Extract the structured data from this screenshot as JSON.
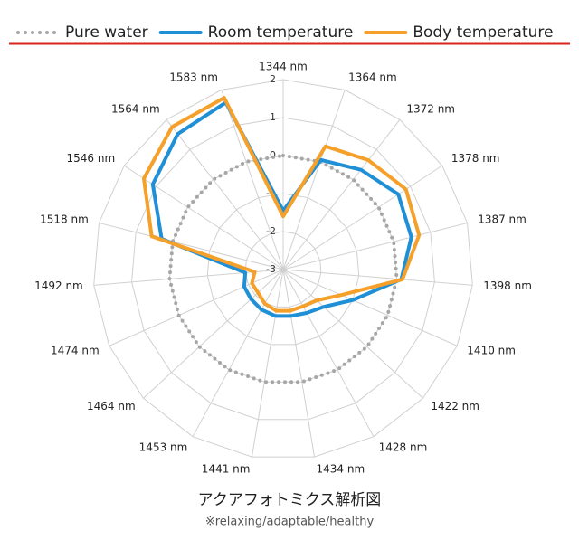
{
  "chart_data": {
    "type": "radar",
    "title": "アクアフォトミクス解析図",
    "subtitle": "※relaxing/adaptable/healthy",
    "categories": [
      "1344 nm",
      "1364 nm",
      "1372 nm",
      "1378 nm",
      "1387 nm",
      "1398 nm",
      "1410 nm",
      "1422 nm",
      "1428 nm",
      "1434 nm",
      "1441 nm",
      "1453 nm",
      "1464 nm",
      "1474 nm",
      "1492 nm",
      "1518 nm",
      "1546 nm",
      "1564 nm",
      "1583 nm"
    ],
    "series": [
      {
        "name": "Pure water",
        "color": "#a6a6a6",
        "style": "dotted",
        "values": [
          0,
          0,
          0,
          0,
          0,
          0,
          0,
          0,
          0,
          0,
          0,
          0,
          0,
          0,
          0,
          0,
          0,
          0,
          0
        ]
      },
      {
        "name": "Room temperature",
        "color": "#1f8fd6",
        "style": "solid",
        "values": [
          -1.45,
          0.05,
          0.33,
          0.62,
          0.48,
          0.12,
          -1.0,
          -1.55,
          -1.7,
          -1.76,
          -1.76,
          -1.8,
          -1.85,
          -1.88,
          -2.0,
          0.3,
          1.1,
          1.52,
          1.65
        ]
      },
      {
        "name": "Body temperature",
        "color": "#f5a02a",
        "style": "solid",
        "values": [
          -1.6,
          0.43,
          0.65,
          0.86,
          0.69,
          0.15,
          -1.33,
          -1.8,
          -1.9,
          -1.9,
          -1.9,
          -1.98,
          -2.1,
          -2.1,
          -2.25,
          0.57,
          1.38,
          1.76,
          1.78
        ]
      }
    ],
    "ylim": [
      -3,
      2
    ],
    "yticks": [
      -3,
      -2,
      -1,
      0,
      1,
      2
    ],
    "grid": true,
    "legend": "top"
  }
}
